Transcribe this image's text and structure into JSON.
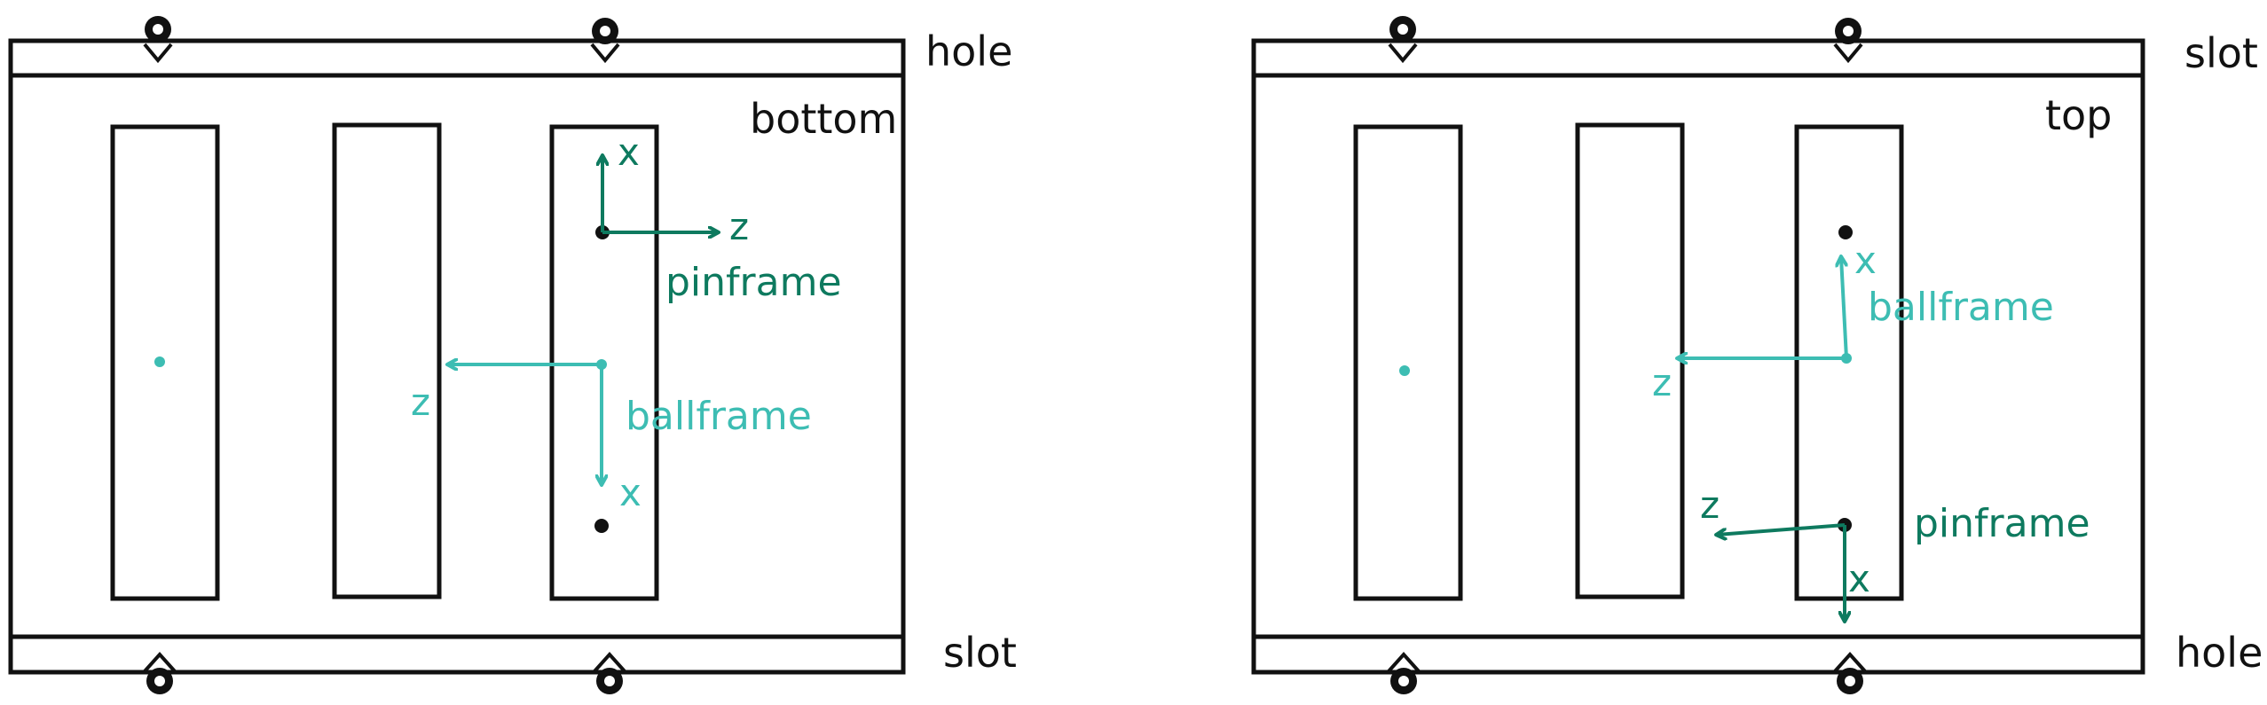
{
  "diagrams": [
    {
      "id": "left",
      "view_label": "bottom",
      "top_edge_label": "hole",
      "bottom_edge_label": "slot",
      "pinframe": {
        "label": "pinframe",
        "axis_x": "x",
        "axis_z": "z"
      },
      "ballframe": {
        "label": "ballframe",
        "axis_x": "x",
        "axis_z": "z"
      }
    },
    {
      "id": "right",
      "view_label": "top",
      "top_edge_label": "slot",
      "bottom_edge_label": "hole",
      "pinframe": {
        "label": "pinframe",
        "axis_x": "x",
        "axis_z": "z"
      },
      "ballframe": {
        "label": "ballframe",
        "axis_x": "x",
        "axis_z": "z"
      }
    }
  ],
  "colors": {
    "outline": "#111111",
    "pinframe": "#0e7a5f",
    "ballframe": "#3dbdb3"
  }
}
